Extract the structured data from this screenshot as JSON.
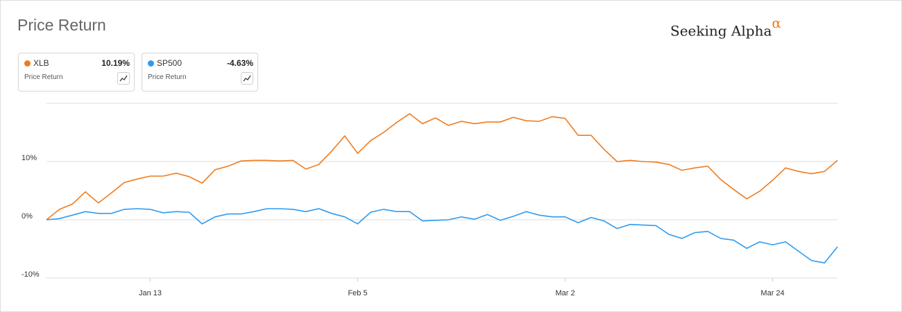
{
  "chart_data": {
    "type": "line",
    "title": "Price Return",
    "brand": "Seeking Alpha",
    "brand_mark": "α",
    "categories": [
      null,
      null,
      null,
      null,
      null,
      null,
      null,
      null,
      "Jan 13",
      null,
      null,
      null,
      null,
      null,
      null,
      null,
      null,
      null,
      null,
      null,
      null,
      null,
      null,
      null,
      "Feb 5",
      null,
      null,
      null,
      null,
      null,
      null,
      null,
      null,
      null,
      null,
      null,
      null,
      null,
      null,
      null,
      "Mar 2",
      null,
      null,
      null,
      null,
      null,
      null,
      null,
      null,
      null,
      null,
      null,
      null,
      null,
      null,
      null,
      "Mar 24",
      null,
      null,
      null,
      null,
      null
    ],
    "series": [
      {
        "name": "XLB",
        "color": "#f07b1d",
        "summary": {
          "value": 10.19,
          "label": "10.19%",
          "metric": "Price Return"
        },
        "values": [
          0,
          1.8,
          2.7,
          4.8,
          2.9,
          4.6,
          6.4,
          7.0,
          7.5,
          7.5,
          8.0,
          7.4,
          6.3,
          8.6,
          9.2,
          10.1,
          10.2,
          10.2,
          10.1,
          10.2,
          8.7,
          9.5,
          11.8,
          14.4,
          11.4,
          13.6,
          15.0,
          16.7,
          18.2,
          16.5,
          17.5,
          16.2,
          16.9,
          16.5,
          16.8,
          16.8,
          17.6,
          17.0,
          16.9,
          17.7,
          17.4,
          14.5,
          14.5,
          12.1,
          10.0,
          10.2,
          10.0,
          9.9,
          9.5,
          8.5,
          8.9,
          9.2,
          6.9,
          5.2,
          3.6,
          4.9,
          6.8,
          8.9,
          8.3,
          7.9,
          8.3,
          10.19
        ]
      },
      {
        "name": "SP500",
        "color": "#2d9bf0",
        "summary": {
          "value": -4.63,
          "label": "-4.63%",
          "metric": "Price Return"
        },
        "values": [
          0,
          0.2,
          0.8,
          1.4,
          1.1,
          1.1,
          1.8,
          1.9,
          1.8,
          1.2,
          1.4,
          1.3,
          -0.7,
          0.5,
          1.0,
          1.0,
          1.4,
          1.9,
          1.9,
          1.8,
          1.4,
          1.9,
          1.1,
          0.5,
          -0.7,
          1.3,
          1.8,
          1.4,
          1.4,
          -0.2,
          -0.1,
          0,
          0.5,
          0.1,
          0.9,
          -0.1,
          0.6,
          1.4,
          0.8,
          0.5,
          0.5,
          -0.5,
          0.4,
          -0.2,
          -1.5,
          -0.8,
          -0.9,
          -1.0,
          -2.5,
          -3.2,
          -2.2,
          -2.0,
          -3.2,
          -3.5,
          -4.9,
          -3.8,
          -4.3,
          -3.8,
          -5.4,
          -7.0,
          -7.4,
          -4.63
        ]
      }
    ],
    "ylim": [
      -10,
      20
    ],
    "yticks": [
      {
        "value": -10,
        "label": "-10%"
      },
      {
        "value": 0,
        "label": "0%"
      },
      {
        "value": 10,
        "label": "10%"
      }
    ],
    "grid": true
  }
}
